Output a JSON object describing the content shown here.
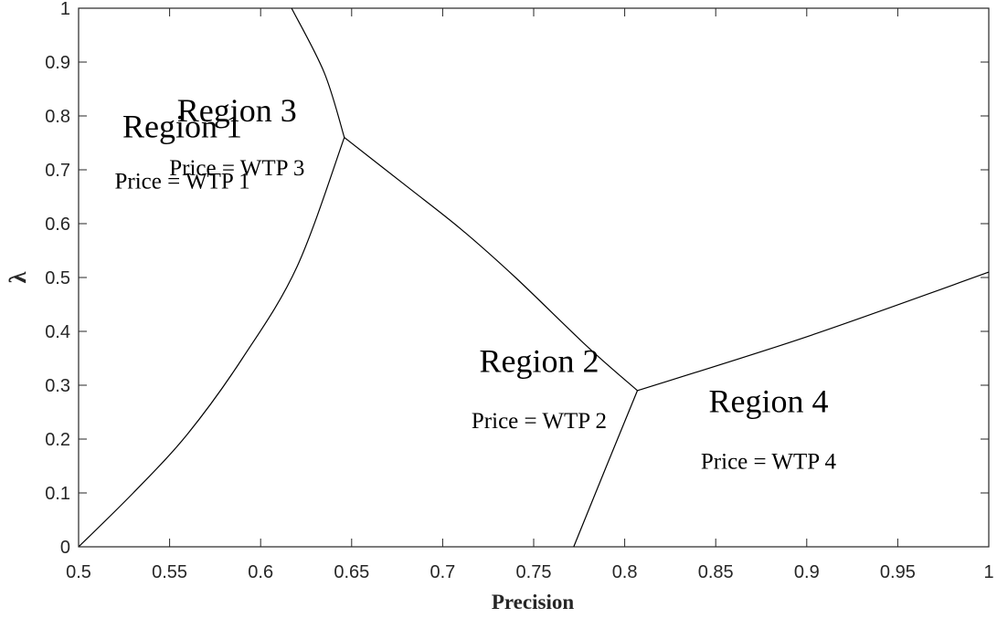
{
  "chart_data": {
    "type": "line",
    "title": "",
    "xlabel": "Precision",
    "ylabel": "λ",
    "xlim": [
      0.5,
      1
    ],
    "ylim": [
      0,
      1
    ],
    "grid": false,
    "x_ticks": [
      "0.5",
      "0.55",
      "0.6",
      "0.65",
      "0.7",
      "0.75",
      "0.8",
      "0.85",
      "0.9",
      "0.95",
      "1"
    ],
    "y_ticks": [
      "0",
      "0.1",
      "0.2",
      "0.3",
      "0.4",
      "0.5",
      "0.6",
      "0.7",
      "0.8",
      "0.9",
      "1"
    ],
    "series": [
      {
        "points": [
          [
            0.5,
            0.0
          ],
          [
            0.53,
            0.1
          ],
          [
            0.56,
            0.21
          ],
          [
            0.59,
            0.35
          ],
          [
            0.62,
            0.52
          ],
          [
            0.646,
            0.76
          ]
        ]
      },
      {
        "points": [
          [
            0.617,
            1.0
          ],
          [
            0.635,
            0.88
          ],
          [
            0.646,
            0.76
          ]
        ]
      },
      {
        "points": [
          [
            0.646,
            0.76
          ],
          [
            0.68,
            0.67
          ],
          [
            0.71,
            0.59
          ],
          [
            0.74,
            0.5
          ],
          [
            0.78,
            0.37
          ],
          [
            0.807,
            0.29
          ]
        ]
      },
      {
        "points": [
          [
            0.807,
            0.29
          ],
          [
            0.79,
            0.15
          ],
          [
            0.772,
            0.0
          ]
        ]
      },
      {
        "points": [
          [
            0.807,
            0.29
          ],
          [
            0.9,
            0.39
          ],
          [
            1.0,
            0.51
          ]
        ]
      }
    ],
    "annotations": [
      {
        "title": "Region 1",
        "price": "Price = WTP 1",
        "x": 0.557,
        "y": 0.76,
        "y2": 0.665
      },
      {
        "title": "Region 3",
        "price": "Price = WTP 3",
        "x": 0.587,
        "y": 0.79,
        "y2": 0.69
      },
      {
        "title": "Region 2",
        "price": "Price = WTP 2",
        "x": 0.753,
        "y": 0.325,
        "y2": 0.22
      },
      {
        "title": "Region 4",
        "price": "Price = WTP 4",
        "x": 0.879,
        "y": 0.25,
        "y2": 0.145
      }
    ]
  }
}
